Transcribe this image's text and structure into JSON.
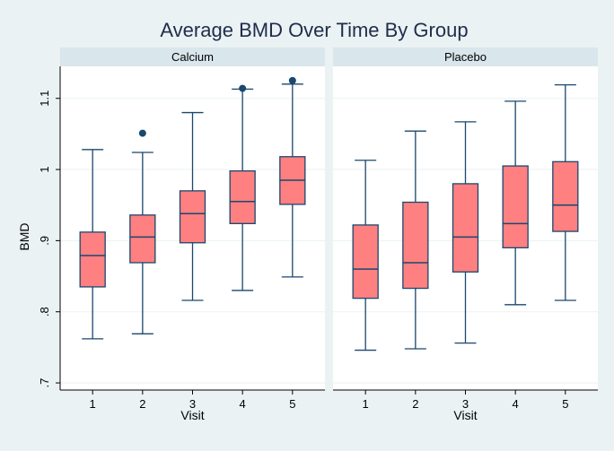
{
  "chart_data": {
    "type": "box",
    "title": "Average BMD Over Time By Group",
    "ylabel": "BMD",
    "xlabel": "Visit",
    "ylim": [
      0.69,
      1.145
    ],
    "yticks": [
      0.7,
      0.8,
      0.9,
      1.0,
      1.1
    ],
    "ytick_labels": [
      ".7",
      ".8",
      ".9",
      "1",
      "1.1"
    ],
    "categories": [
      "1",
      "2",
      "3",
      "4",
      "5"
    ],
    "grid": true,
    "colors": {
      "background": "#eaf2f3",
      "box_fill": "#ff8080",
      "box_stroke": "#1a476f",
      "outlier": "#1a476f",
      "panel_header": "#d9e6eb",
      "gridline": "#eaf2f3",
      "title": "#1e2d4b"
    },
    "panels": [
      {
        "name": "Calcium",
        "boxes": [
          {
            "visit": "1",
            "whisker_low": 0.762,
            "q1": 0.835,
            "median": 0.879,
            "q3": 0.912,
            "whisker_high": 1.028,
            "outliers": []
          },
          {
            "visit": "2",
            "whisker_low": 0.769,
            "q1": 0.869,
            "median": 0.905,
            "q3": 0.936,
            "whisker_high": 1.024,
            "outliers": [
              1.051
            ]
          },
          {
            "visit": "3",
            "whisker_low": 0.816,
            "q1": 0.897,
            "median": 0.938,
            "q3": 0.97,
            "whisker_high": 1.08,
            "outliers": []
          },
          {
            "visit": "4",
            "whisker_low": 0.83,
            "q1": 0.924,
            "median": 0.955,
            "q3": 0.998,
            "whisker_high": 1.113,
            "outliers": [
              1.114
            ]
          },
          {
            "visit": "5",
            "whisker_low": 0.849,
            "q1": 0.951,
            "median": 0.985,
            "q3": 1.018,
            "whisker_high": 1.12,
            "outliers": [
              1.125
            ]
          }
        ]
      },
      {
        "name": "Placebo",
        "boxes": [
          {
            "visit": "1",
            "whisker_low": 0.746,
            "q1": 0.819,
            "median": 0.86,
            "q3": 0.922,
            "whisker_high": 1.013,
            "outliers": []
          },
          {
            "visit": "2",
            "whisker_low": 0.748,
            "q1": 0.833,
            "median": 0.869,
            "q3": 0.954,
            "whisker_high": 1.054,
            "outliers": []
          },
          {
            "visit": "3",
            "whisker_low": 0.756,
            "q1": 0.856,
            "median": 0.905,
            "q3": 0.98,
            "whisker_high": 1.067,
            "outliers": []
          },
          {
            "visit": "4",
            "whisker_low": 0.81,
            "q1": 0.89,
            "median": 0.924,
            "q3": 1.005,
            "whisker_high": 1.096,
            "outliers": []
          },
          {
            "visit": "5",
            "whisker_low": 0.816,
            "q1": 0.913,
            "median": 0.95,
            "q3": 1.011,
            "whisker_high": 1.119,
            "outliers": []
          }
        ]
      }
    ]
  }
}
